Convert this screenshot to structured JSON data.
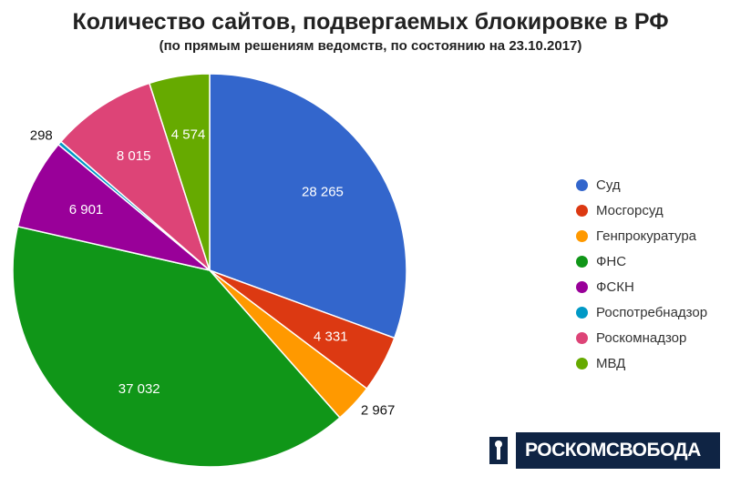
{
  "chart_data": {
    "type": "pie",
    "title": "Количество сайтов, подвергаемых блокировке в РФ",
    "subtitle": "(по прямым решениям ведомств, по состоянию на 23.10.2017)",
    "legend_position": "right",
    "slices": [
      {
        "name": "Суд",
        "value": 28265,
        "label": "28 265",
        "color": "#3366cc"
      },
      {
        "name": "Мосгорсуд",
        "value": 4331,
        "label": "4 331",
        "color": "#dc3912"
      },
      {
        "name": "Генпрокуратура",
        "value": 2967,
        "label": "2 967",
        "color": "#ff9900"
      },
      {
        "name": "ФНС",
        "value": 37032,
        "label": "37 032",
        "color": "#109618"
      },
      {
        "name": "ФСКН",
        "value": 6901,
        "label": "6 901",
        "color": "#990099"
      },
      {
        "name": "Роспотребнадзор",
        "value": 298,
        "label": "298",
        "color": "#0099c6"
      },
      {
        "name": "Роскомнадзор",
        "value": 8015,
        "label": "8 015",
        "color": "#dd4477"
      },
      {
        "name": "МВД",
        "value": 4574,
        "label": "4 574",
        "color": "#66aa00"
      }
    ]
  },
  "logo": {
    "text": "РОСКОМСВОБОДА",
    "icon": "keyhole-icon"
  }
}
